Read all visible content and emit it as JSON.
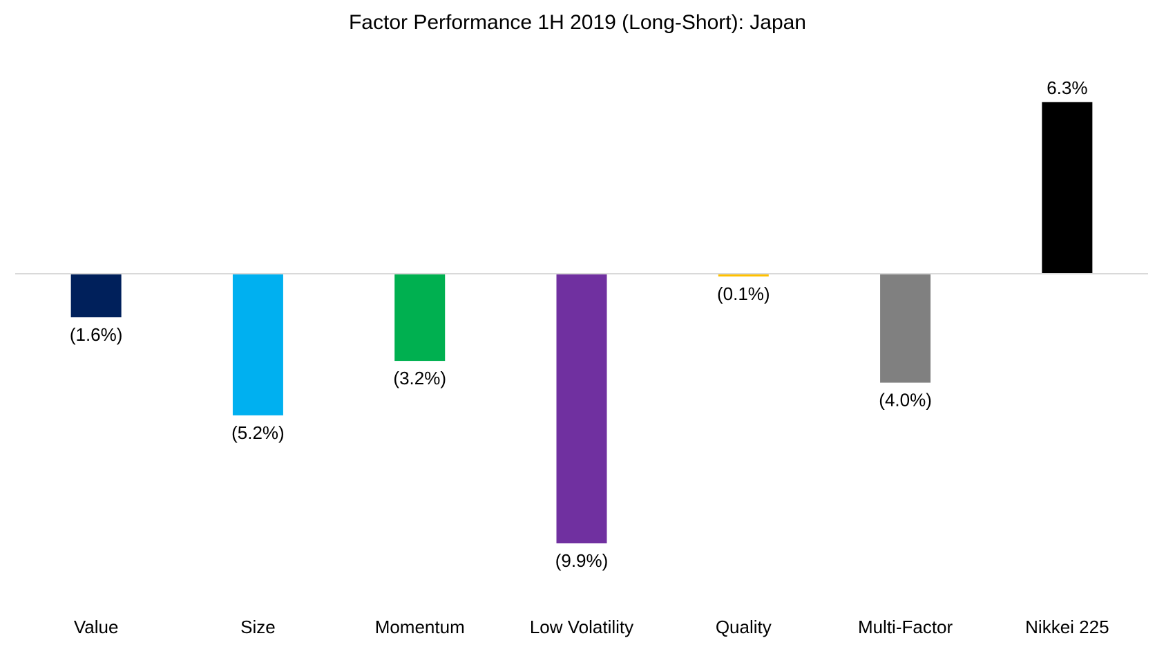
{
  "chart_data": {
    "type": "bar",
    "title": "Factor Performance 1H 2019 (Long-Short): Japan",
    "xlabel": "",
    "ylabel": "",
    "categories": [
      "Value",
      "Size",
      "Momentum",
      "Low Volatility",
      "Quality",
      "Multi-Factor",
      "Nikkei 225"
    ],
    "values": [
      -1.6,
      -5.2,
      -3.2,
      -9.9,
      -0.1,
      -4.0,
      6.3
    ],
    "value_labels": [
      "(1.6%)",
      "(5.2%)",
      "(3.2%)",
      "(9.9%)",
      "(0.1%)",
      "(4.0%)",
      "6.3%"
    ],
    "colors": [
      "#00205B",
      "#00B0F0",
      "#00B050",
      "#7030A0",
      "#FFC000",
      "#808080",
      "#000000"
    ],
    "ylim": [
      -9.9,
      6.3
    ],
    "grid": false,
    "legend": "none",
    "baseline_color": "#D9D9D9"
  }
}
